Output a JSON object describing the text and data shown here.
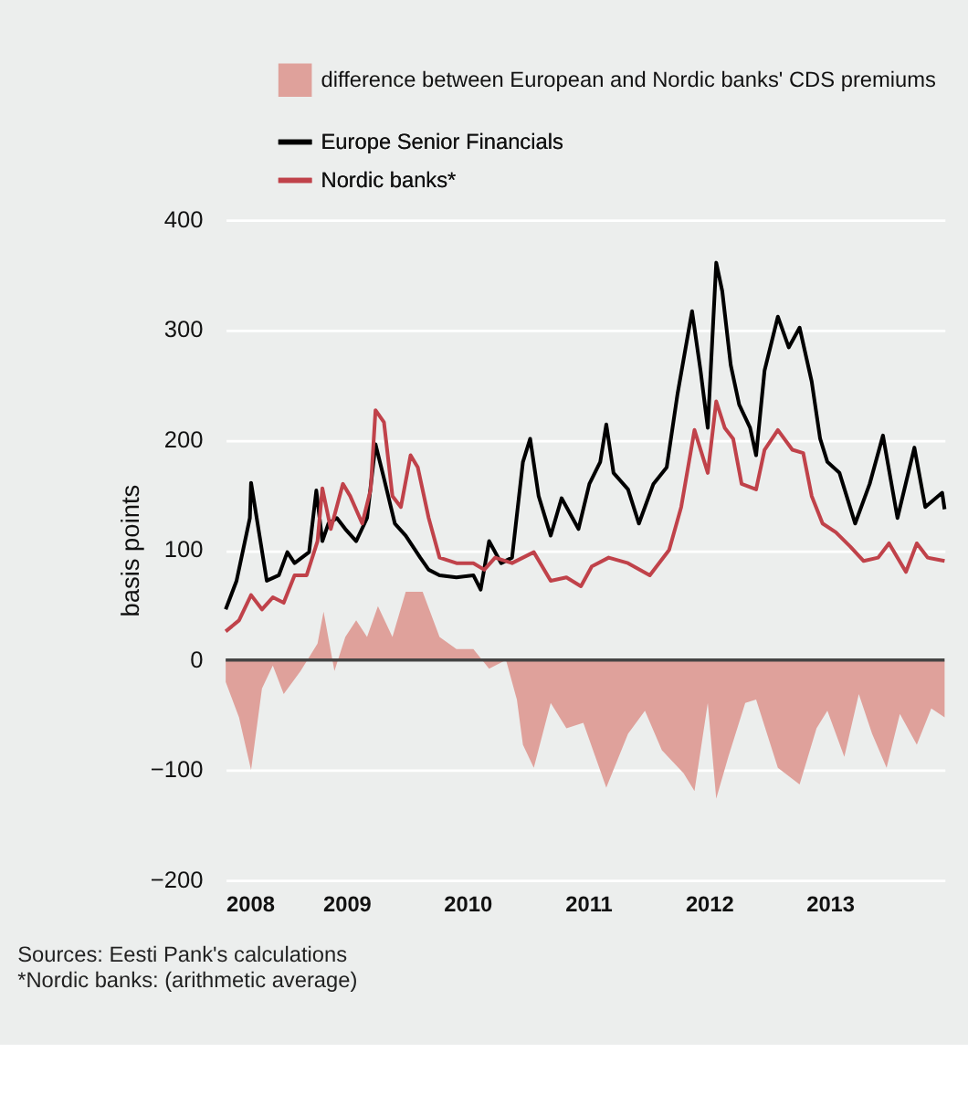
{
  "chart_data": {
    "type": "line",
    "ylabel": "basis points",
    "xlim": [
      2008,
      2013.95
    ],
    "xticks": [
      2008,
      2009,
      2010,
      2011,
      2012,
      2013
    ],
    "ylim": [
      -200,
      400
    ],
    "yticks": [
      -200,
      -100,
      0,
      100,
      200,
      300,
      400
    ],
    "grid": "y",
    "legend": "top",
    "marker": "none",
    "line_style": "solid",
    "ref_lines": [
      {
        "axis": "y",
        "value": 0,
        "color": "#444444"
      }
    ],
    "annotations": [
      "Sources: Eesti Pank's calculations",
      "*Nordic banks: (arithmetic average)"
    ],
    "series": [
      {
        "name": "difference between European and Nordic banks' CDS premiums",
        "type": "area",
        "color": "#dfa19b",
        "x": [
          2008.0,
          2008.11,
          2008.21,
          2008.3,
          2008.39,
          2008.48,
          2008.62,
          2008.76,
          2008.81,
          2008.9,
          2008.99,
          2009.08,
          2009.17,
          2009.26,
          2009.38,
          2009.49,
          2009.63,
          2009.77,
          2009.91,
          2010.05,
          2010.18,
          2010.32,
          2010.41,
          2010.46,
          2010.55,
          2010.69,
          2010.82,
          2010.96,
          2011.15,
          2011.33,
          2011.47,
          2011.61,
          2011.79,
          2011.88,
          2011.99,
          2012.06,
          2012.16,
          2012.3,
          2012.39,
          2012.57,
          2012.75,
          2012.89,
          2012.98,
          2013.12,
          2013.24,
          2013.35,
          2013.47,
          2013.58,
          2013.72,
          2013.84,
          2013.95
        ],
        "values": [
          -20,
          -52,
          -100,
          -26,
          -5,
          -31,
          -10,
          15,
          44,
          -10,
          21,
          36,
          21,
          49,
          21,
          62,
          62,
          21,
          10,
          10,
          -8,
          0,
          -36,
          -77,
          -98,
          -39,
          -62,
          -57,
          -116,
          -67,
          -46,
          -82,
          -103,
          -119,
          -39,
          -126,
          -88,
          -39,
          -36,
          -98,
          -113,
          -62,
          -46,
          -88,
          -31,
          -67,
          -98,
          -49,
          -77,
          -44,
          -52
        ]
      },
      {
        "name": "Europe Senior Financials",
        "color": "#000000",
        "x": [
          2008.0,
          2008.09,
          2008.2,
          2008.21,
          2008.28,
          2008.34,
          2008.44,
          2008.51,
          2008.57,
          2008.69,
          2008.75,
          2008.8,
          2008.85,
          2008.92,
          2008.99,
          2009.08,
          2009.17,
          2009.24,
          2009.31,
          2009.4,
          2009.49,
          2009.61,
          2009.68,
          2009.77,
          2009.91,
          2010.05,
          2010.11,
          2010.18,
          2010.28,
          2010.37,
          2010.46,
          2010.52,
          2010.59,
          2010.69,
          2010.78,
          2010.92,
          2011.01,
          2011.1,
          2011.15,
          2011.21,
          2011.33,
          2011.42,
          2011.54,
          2011.65,
          2011.74,
          2011.86,
          2011.93,
          2011.99,
          2012.06,
          2012.11,
          2012.18,
          2012.25,
          2012.34,
          2012.39,
          2012.46,
          2012.57,
          2012.66,
          2012.75,
          2012.85,
          2012.92,
          2012.98,
          2013.08,
          2013.21,
          2013.33,
          2013.44,
          2013.56,
          2013.7,
          2013.79,
          2013.93,
          2013.95
        ],
        "values": [
          46,
          72,
          129,
          161,
          113,
          72,
          77,
          98,
          88,
          98,
          154,
          108,
          124,
          129,
          119,
          108,
          129,
          196,
          165,
          124,
          113,
          93,
          82,
          77,
          75,
          77,
          64,
          108,
          88,
          93,
          180,
          201,
          149,
          113,
          147,
          119,
          160,
          180,
          214,
          170,
          155,
          124,
          160,
          175,
          242,
          317,
          263,
          211,
          361,
          335,
          268,
          232,
          211,
          186,
          263,
          312,
          284,
          302,
          253,
          201,
          180,
          170,
          124,
          160,
          204,
          129,
          193,
          139,
          152,
          137
        ]
      },
      {
        "name": "Nordic banks*",
        "color": "#c0424a",
        "x": [
          2008.0,
          2008.11,
          2008.21,
          2008.3,
          2008.39,
          2008.48,
          2008.57,
          2008.67,
          2008.76,
          2008.8,
          2008.87,
          2008.97,
          2009.03,
          2009.13,
          2009.2,
          2009.24,
          2009.31,
          2009.38,
          2009.45,
          2009.53,
          2009.59,
          2009.68,
          2009.77,
          2009.91,
          2010.05,
          2010.14,
          2010.23,
          2010.37,
          2010.55,
          2010.69,
          2010.82,
          2010.94,
          2011.03,
          2011.17,
          2011.33,
          2011.51,
          2011.67,
          2011.77,
          2011.88,
          2011.99,
          2012.06,
          2012.13,
          2012.2,
          2012.27,
          2012.39,
          2012.46,
          2012.57,
          2012.69,
          2012.78,
          2012.85,
          2012.94,
          2013.05,
          2013.17,
          2013.28,
          2013.4,
          2013.49,
          2013.63,
          2013.72,
          2013.81,
          2013.95
        ],
        "values": [
          26,
          36,
          59,
          46,
          57,
          52,
          77,
          77,
          108,
          156,
          119,
          160,
          149,
          124,
          155,
          227,
          216,
          149,
          139,
          186,
          175,
          129,
          93,
          88,
          88,
          82,
          93,
          88,
          98,
          72,
          75,
          67,
          85,
          93,
          88,
          77,
          100,
          139,
          209,
          170,
          235,
          211,
          201,
          160,
          155,
          191,
          209,
          191,
          188,
          149,
          124,
          116,
          103,
          90,
          93,
          106,
          80,
          106,
          93,
          90
        ]
      }
    ]
  }
}
